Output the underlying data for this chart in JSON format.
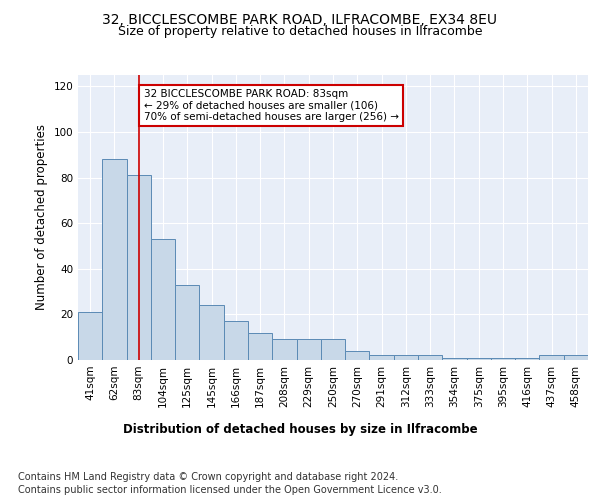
{
  "title1": "32, BICCLESCOMBE PARK ROAD, ILFRACOMBE, EX34 8EU",
  "title2": "Size of property relative to detached houses in Ilfracombe",
  "xlabel": "Distribution of detached houses by size in Ilfracombe",
  "ylabel": "Number of detached properties",
  "categories": [
    "41sqm",
    "62sqm",
    "83sqm",
    "104sqm",
    "125sqm",
    "145sqm",
    "166sqm",
    "187sqm",
    "208sqm",
    "229sqm",
    "250sqm",
    "270sqm",
    "291sqm",
    "312sqm",
    "333sqm",
    "354sqm",
    "375sqm",
    "395sqm",
    "416sqm",
    "437sqm",
    "458sqm"
  ],
  "values": [
    21,
    88,
    81,
    53,
    33,
    24,
    17,
    12,
    9,
    9,
    9,
    4,
    2,
    2,
    2,
    1,
    1,
    1,
    1,
    2,
    2
  ],
  "bar_color": "#c8d8e8",
  "bar_edge_color": "#5b8ab5",
  "red_line_index": 2,
  "red_line_color": "#cc0000",
  "annotation_text": "32 BICCLESCOMBE PARK ROAD: 83sqm\n← 29% of detached houses are smaller (106)\n70% of semi-detached houses are larger (256) →",
  "annotation_box_color": "white",
  "annotation_box_edge_color": "#cc0000",
  "ylim": [
    0,
    125
  ],
  "yticks": [
    0,
    20,
    40,
    60,
    80,
    100,
    120
  ],
  "footer1": "Contains HM Land Registry data © Crown copyright and database right 2024.",
  "footer2": "Contains public sector information licensed under the Open Government Licence v3.0.",
  "bg_color": "white",
  "plot_bg_color": "#e8eef8",
  "title1_fontsize": 10,
  "title2_fontsize": 9,
  "axis_label_fontsize": 8.5,
  "tick_fontsize": 7.5,
  "annotation_fontsize": 7.5,
  "footer_fontsize": 7
}
